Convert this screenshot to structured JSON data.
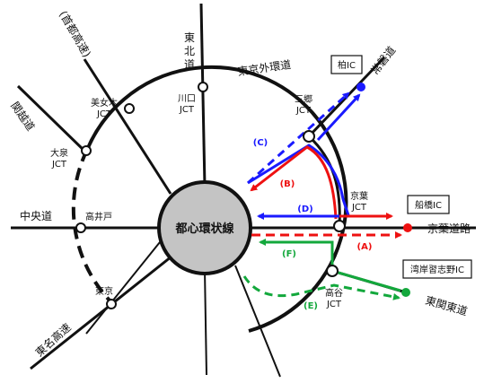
{
  "core_label": "都心環状線",
  "roads": {
    "tohoku": "東北道",
    "gaikan": "東京外環道",
    "joban": "常磐道",
    "shuto": "(首都高速)",
    "kanetsu": "関越道",
    "chuo": "中央道",
    "tomei": "東名高速",
    "keiyo": "京葉道路",
    "higashikan": "東関東道"
  },
  "junctions": {
    "bijogi": [
      "美女木",
      "JCT"
    ],
    "kawaguchi": [
      "川口",
      "JCT"
    ],
    "misato": [
      "三郷",
      "JCT"
    ],
    "keiyo_jct": [
      "京葉",
      "JCT"
    ],
    "koya": [
      "高谷",
      "JCT"
    ],
    "oizumi": [
      "大泉",
      "JCT"
    ],
    "takaido": "高井戸",
    "tokyo": "東京"
  },
  "ics": {
    "kashiwa": "柏IC",
    "funabashi": "船橋IC",
    "wangan": "湾岸習志野IC"
  },
  "routes": {
    "A": "(A)",
    "B": "(B)",
    "C": "(C)",
    "D": "(D)",
    "E": "(E)",
    "F": "(F)"
  },
  "colors": {
    "route_blue": "#1a1aff",
    "route_red": "#ee1111",
    "route_green": "#13a83c",
    "core_fill": "#c4c4c4"
  }
}
